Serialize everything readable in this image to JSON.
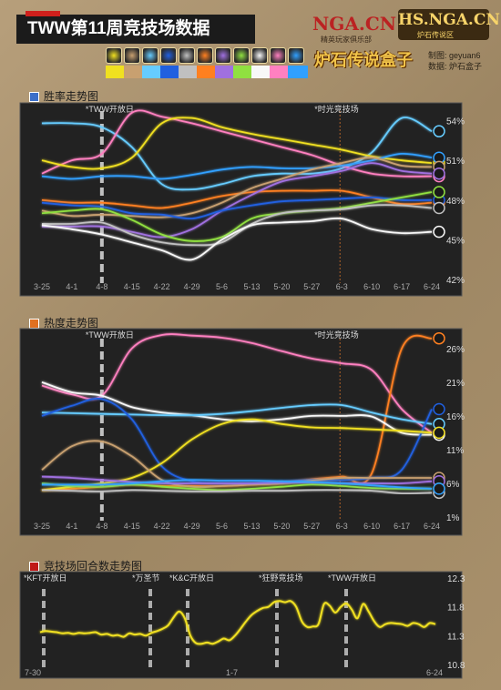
{
  "header": {
    "title": "TWW第11周竞技场数据",
    "logo_nga": "NGA.CN",
    "logo_nga_sub": "精英玩家俱乐部",
    "logo_hs": "HS.NGA.CN",
    "logo_hs_sub": "炉石传说区",
    "logo_box": "炉石传说盒子",
    "credit_line1": "制图: geyuan6",
    "credit_line2": "数据: 炉石盒子"
  },
  "class_colors": [
    "#f0e020",
    "#c8a070",
    "#66ccff",
    "#2060e0",
    "#c0c0c0",
    "#ff8020",
    "#a070e0",
    "#90e040",
    "#f8f8f8",
    "#ff80c0",
    "#30a0ff"
  ],
  "class_icons": [
    "druid-icon",
    "hunter-icon",
    "mage-icon",
    "paladin-icon",
    "priest-icon",
    "rogue-icon",
    "warlock-icon",
    "shaman-icon",
    "demonhunter-icon",
    "warrior-icon",
    "deathknight-icon"
  ],
  "chart_data": [
    {
      "type": "line",
      "title": "胜率走势图",
      "x": [
        "3-25",
        "4-1",
        "4-8",
        "4-15",
        "4-22",
        "4-29",
        "5-6",
        "5-13",
        "5-20",
        "5-27",
        "6-3",
        "6-10",
        "6-17",
        "6-24"
      ],
      "yticks": [
        "54%",
        "51%",
        "48%",
        "45%",
        "42%"
      ],
      "ylim": [
        42,
        55
      ],
      "annotations": [
        "*TWW开放日",
        "*时光竞技场"
      ],
      "series": [
        {
          "color": "#66ccff",
          "values": [
            53.8,
            53.8,
            53.5,
            52.0,
            49.2,
            48.8,
            49.2,
            49.8,
            50.0,
            50.0,
            50.4,
            51.6,
            54.2,
            53.2
          ]
        },
        {
          "color": "#ff80c0",
          "values": [
            50.0,
            51.0,
            51.5,
            54.6,
            54.3,
            53.8,
            53.2,
            52.6,
            52.0,
            51.4,
            50.6,
            50.0,
            49.8,
            49.8
          ]
        },
        {
          "color": "#f0e020",
          "values": [
            51.0,
            50.5,
            50.4,
            51.2,
            53.8,
            54.2,
            53.5,
            53.0,
            52.6,
            52.2,
            51.8,
            51.3,
            51.0,
            50.8
          ]
        },
        {
          "color": "#30a0ff",
          "values": [
            49.8,
            49.6,
            49.8,
            49.8,
            49.6,
            49.9,
            50.3,
            50.5,
            50.4,
            50.4,
            50.6,
            51.0,
            51.5,
            51.2
          ]
        },
        {
          "color": "#ff8020",
          "values": [
            48.0,
            47.8,
            47.8,
            47.6,
            47.4,
            47.8,
            48.3,
            48.6,
            48.7,
            48.7,
            48.7,
            48.2,
            47.7,
            47.8
          ]
        },
        {
          "color": "#c8a070",
          "values": [
            47.2,
            46.8,
            46.9,
            46.8,
            46.7,
            47.0,
            47.8,
            48.9,
            49.6,
            50.3,
            50.8,
            51.2,
            50.6,
            50.5
          ]
        },
        {
          "color": "#a070e0",
          "values": [
            46.0,
            46.0,
            46.0,
            45.6,
            45.2,
            45.8,
            47.2,
            48.4,
            49.4,
            49.8,
            50.2,
            50.8,
            50.2,
            50.0
          ]
        },
        {
          "color": "#2060e0",
          "values": [
            47.8,
            47.6,
            47.5,
            47.0,
            46.9,
            46.6,
            47.2,
            47.6,
            47.9,
            48.0,
            48.1,
            48.2,
            48.0,
            48.0
          ]
        },
        {
          "color": "#90e040",
          "values": [
            47.0,
            47.2,
            47.3,
            46.5,
            45.4,
            44.9,
            45.2,
            46.6,
            47.0,
            47.2,
            47.4,
            47.8,
            48.2,
            48.6
          ]
        },
        {
          "color": "#c0c0c0",
          "values": [
            46.2,
            46.2,
            46.3,
            45.4,
            44.8,
            44.6,
            44.8,
            46.2,
            47.0,
            47.2,
            47.3,
            47.6,
            47.6,
            47.4
          ]
        },
        {
          "color": "#f8f8f8",
          "values": [
            46.1,
            45.8,
            45.4,
            44.8,
            44.2,
            43.5,
            45.0,
            46.1,
            46.3,
            46.4,
            46.6,
            45.8,
            45.5,
            45.6
          ]
        }
      ]
    },
    {
      "type": "line",
      "title": "热度走势图",
      "x": [
        "3-25",
        "4-1",
        "4-8",
        "4-15",
        "4-22",
        "4-29",
        "5-6",
        "5-13",
        "5-20",
        "5-27",
        "6-3",
        "6-10",
        "6-17",
        "6-24"
      ],
      "yticks": [
        "26%",
        "21%",
        "16%",
        "11%",
        "6%",
        "1%"
      ],
      "ylim": [
        1,
        28
      ],
      "annotations": [
        "*TWW开放日",
        "*时光竞技场"
      ],
      "series": [
        {
          "color": "#ff80c0",
          "values": [
            20.5,
            19.2,
            19.0,
            26.0,
            28.0,
            27.9,
            27.6,
            26.8,
            25.6,
            24.5,
            23.8,
            22.8,
            17.0,
            13.5
          ]
        },
        {
          "color": "#ff8020",
          "values": [
            5.0,
            5.2,
            5.5,
            5.8,
            5.6,
            5.6,
            5.6,
            5.8,
            6.0,
            6.6,
            7.0,
            7.5,
            26.0,
            27.5
          ]
        },
        {
          "color": "#f8f8f8",
          "values": [
            21.0,
            19.5,
            19.0,
            17.3,
            16.5,
            16.1,
            15.5,
            15.2,
            15.5,
            16.0,
            16.0,
            15.9,
            13.5,
            13.2
          ]
        },
        {
          "color": "#66ccff",
          "values": [
            16.5,
            16.4,
            16.3,
            16.2,
            16.1,
            16.1,
            16.3,
            16.7,
            17.2,
            17.6,
            17.6,
            16.5,
            15.5,
            14.8
          ]
        },
        {
          "color": "#2060e0",
          "values": [
            16.0,
            17.5,
            18.5,
            15.5,
            8.5,
            6.3,
            6.0,
            6.0,
            6.2,
            6.5,
            6.5,
            6.8,
            8.0,
            17.0
          ]
        },
        {
          "color": "#f0e020",
          "values": [
            5.0,
            5.5,
            6.0,
            6.8,
            9.0,
            12.5,
            14.8,
            15.5,
            14.8,
            14.3,
            14.2,
            14.0,
            13.8,
            13.5
          ]
        },
        {
          "color": "#c8a070",
          "values": [
            8.0,
            11.5,
            12.2,
            10.0,
            6.5,
            5.5,
            5.6,
            5.8,
            6.0,
            6.4,
            6.8,
            6.8,
            6.8,
            6.8
          ]
        },
        {
          "color": "#a070e0",
          "values": [
            7.0,
            6.8,
            6.5,
            6.2,
            6.0,
            6.0,
            6.0,
            6.0,
            6.1,
            6.1,
            6.0,
            6.0,
            6.0,
            6.3
          ]
        },
        {
          "color": "#90e040",
          "values": [
            6.0,
            5.6,
            5.5,
            5.8,
            5.5,
            5.2,
            5.0,
            5.2,
            5.5,
            5.8,
            5.6,
            5.3,
            5.2,
            5.2
          ]
        },
        {
          "color": "#c0c0c0",
          "values": [
            5.0,
            4.9,
            4.8,
            5.0,
            4.9,
            4.8,
            4.8,
            4.9,
            4.9,
            5.0,
            5.0,
            4.9,
            4.5,
            4.6
          ]
        },
        {
          "color": "#30a0ff",
          "values": [
            5.8,
            5.8,
            5.8,
            6.0,
            6.3,
            6.5,
            6.4,
            6.4,
            6.3,
            6.2,
            6.0,
            5.7,
            5.4,
            5.2
          ]
        }
      ]
    },
    {
      "type": "line",
      "title": "竞技场回合数走势图",
      "x_labels": [
        "7-30",
        "1-7",
        "6-24"
      ],
      "yticks": [
        "12.3",
        "11.8",
        "11.3",
        "10.8"
      ],
      "ylim": [
        10.8,
        12.3
      ],
      "annotations": [
        "*KFT开放日",
        "*万圣节",
        "*K&C开放日",
        "*狂野竞技场",
        "*TWW开放日"
      ],
      "series": [
        {
          "color": "#f0e020",
          "values": [
            11.36,
            11.38,
            11.37,
            11.36,
            11.34,
            11.35,
            11.33,
            11.35,
            11.34,
            11.35,
            11.36,
            11.32,
            11.33,
            11.3,
            11.31,
            11.28,
            11.34,
            11.32,
            11.33,
            11.3,
            11.35,
            11.38,
            11.42,
            11.48,
            11.62,
            11.72,
            11.6,
            11.3,
            11.17,
            11.16,
            11.18,
            11.16,
            11.2,
            11.25,
            11.22,
            11.3,
            11.42,
            11.55,
            11.66,
            11.73,
            11.78,
            11.8,
            11.88,
            11.9,
            11.88,
            11.9,
            11.8,
            11.55,
            11.45,
            11.46,
            11.5,
            11.85,
            11.82,
            11.7,
            11.8,
            11.86,
            11.75,
            11.6,
            11.85,
            11.72,
            11.55,
            11.45,
            11.5,
            11.52,
            11.51,
            11.5,
            11.47,
            11.52,
            11.5,
            11.45,
            11.52,
            11.5
          ]
        }
      ]
    }
  ]
}
